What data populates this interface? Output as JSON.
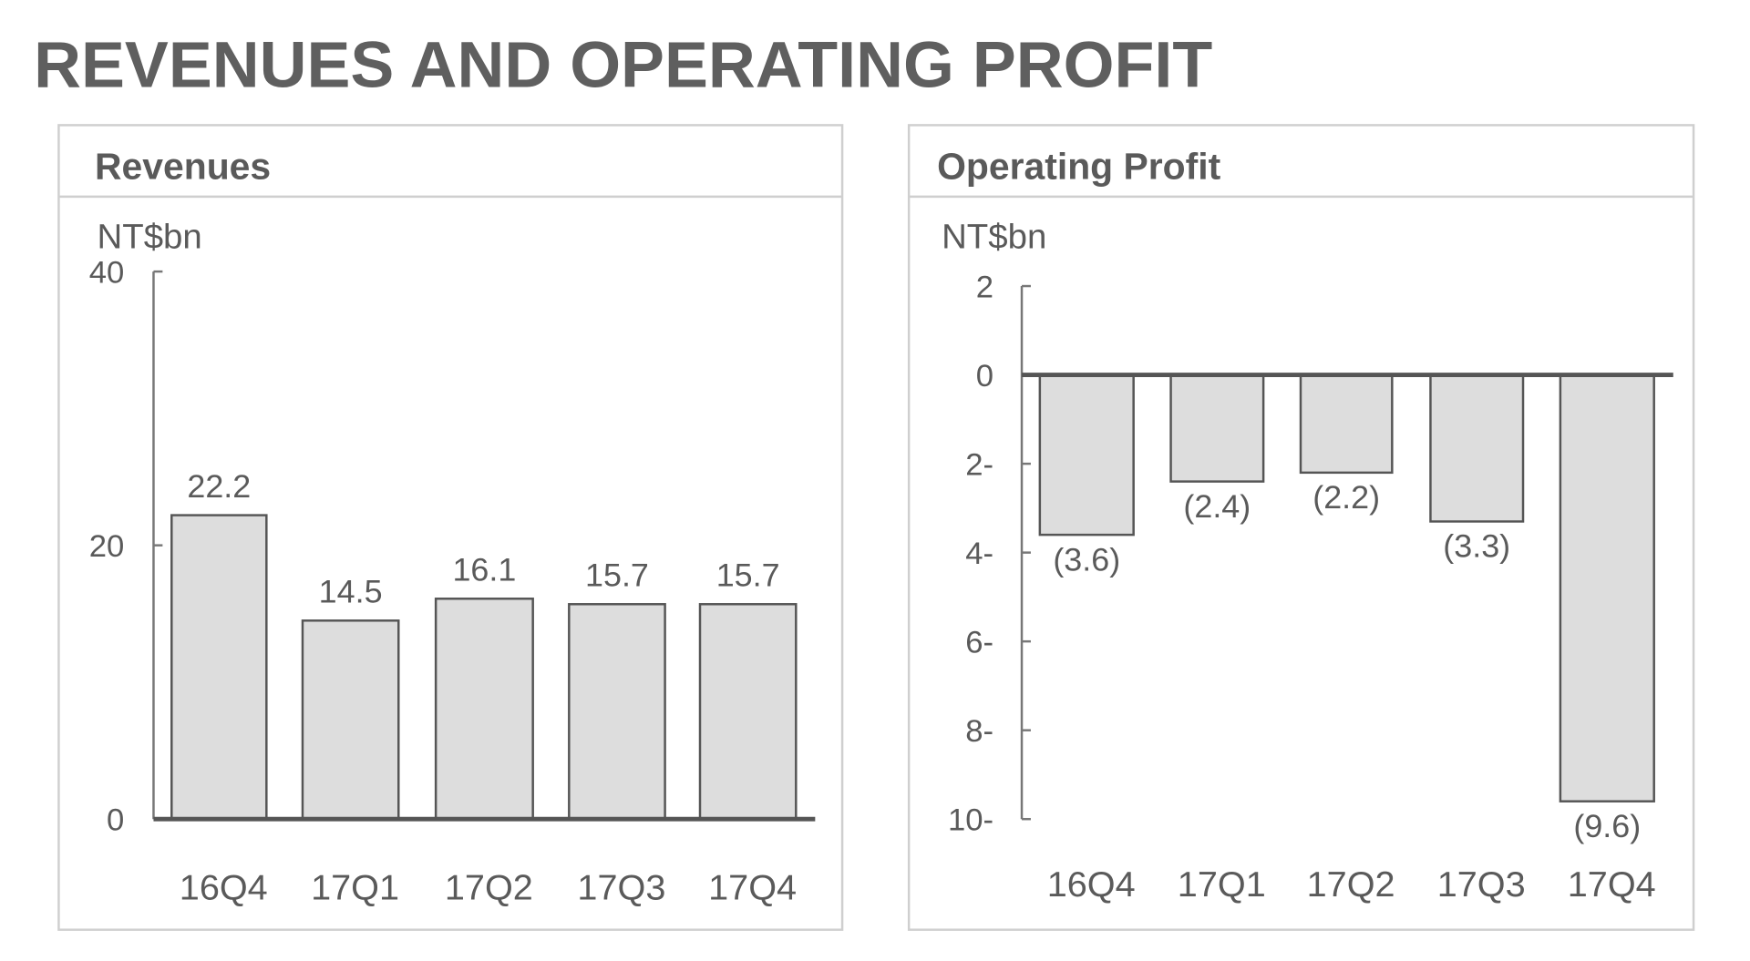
{
  "title": "REVENUES AND OPERATING PROFIT",
  "colors": {
    "bar_fill": "#dddddd",
    "bar_stroke": "#555555",
    "axis": "#555555",
    "text": "#5a5a5a"
  },
  "chart_data": [
    {
      "type": "bar",
      "title": "Revenues",
      "ylabel": "NT$bn",
      "categories": [
        "16Q4",
        "17Q1",
        "17Q2",
        "17Q3",
        "17Q4"
      ],
      "values": [
        22.2,
        14.5,
        16.1,
        15.7,
        15.7
      ],
      "data_labels": [
        "22.2",
        "14.5",
        "16.1",
        "15.7",
        "15.7"
      ],
      "ylim": [
        0,
        40
      ],
      "yticks": [
        0,
        20,
        40
      ],
      "ytick_labels": [
        "0",
        "20",
        "40"
      ],
      "grid": false
    },
    {
      "type": "bar",
      "title": "Operating Profit",
      "ylabel": "NT$bn",
      "categories": [
        "16Q4",
        "17Q1",
        "17Q2",
        "17Q3",
        "17Q4"
      ],
      "values": [
        -3.6,
        -2.4,
        -2.2,
        -3.3,
        -9.6
      ],
      "data_labels": [
        "(3.6)",
        "(2.4)",
        "(2.2)",
        "(3.3)",
        "(9.6)"
      ],
      "ylim": [
        -10,
        2
      ],
      "yticks": [
        2,
        0,
        -2,
        -4,
        -6,
        -8,
        -10
      ],
      "ytick_labels": [
        "2",
        "0",
        "2-",
        "4-",
        "6-",
        "8-",
        "10-"
      ],
      "grid": false
    }
  ]
}
